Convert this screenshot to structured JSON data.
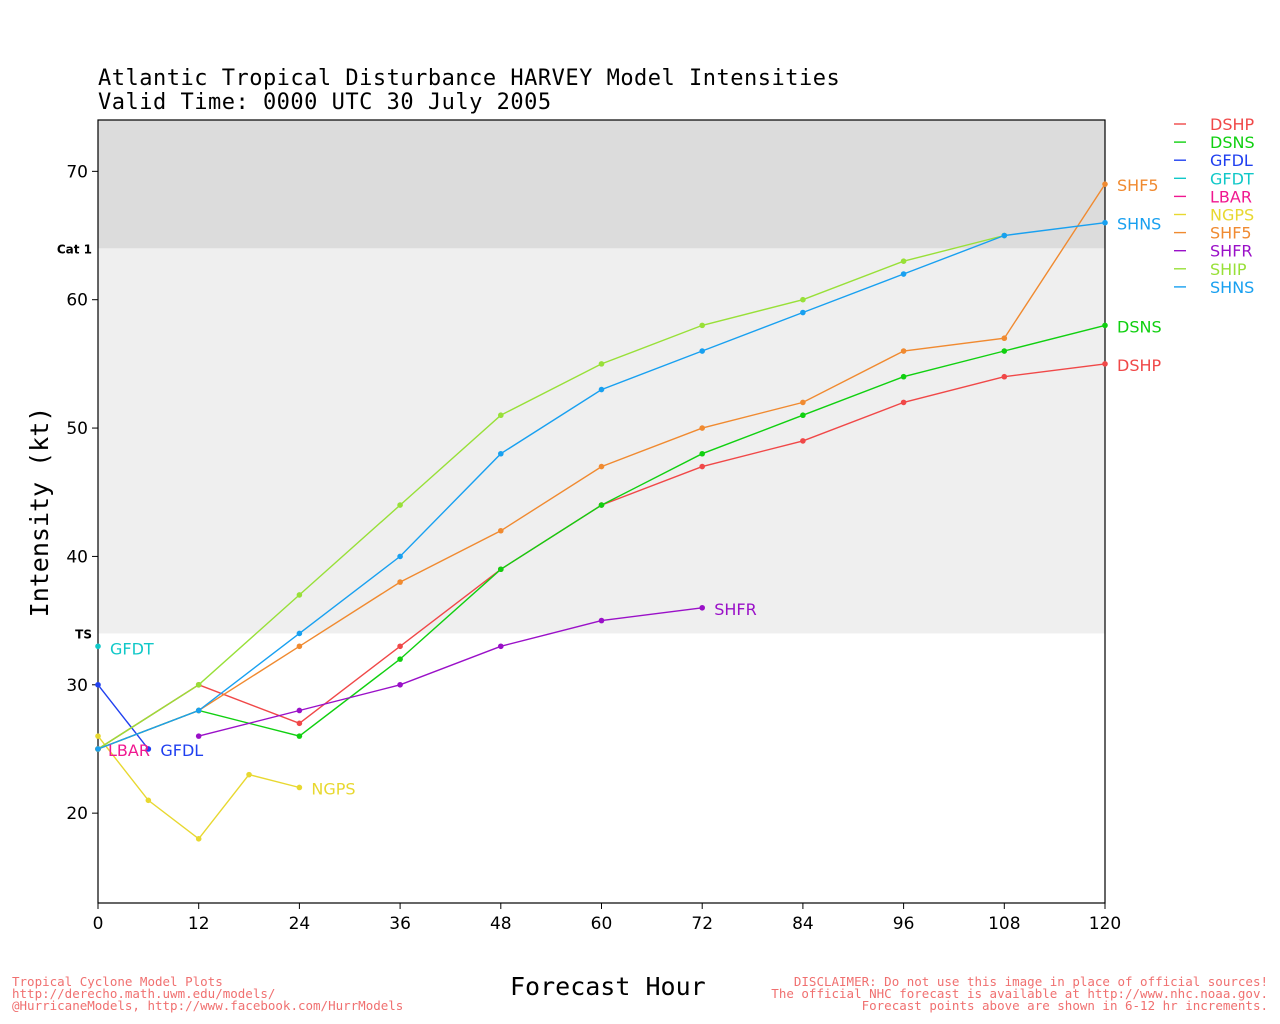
{
  "header": {
    "title_line1": "Atlantic Tropical Disturbance HARVEY Model Intensities",
    "title_line2": "Valid Time: 0000 UTC 30 July 2005"
  },
  "footer": {
    "left_lines": [
      "Tropical Cyclone Model Plots",
      "http://derecho.math.uwm.edu/models/",
      "@HurricaneModels, http://www.facebook.com/HurrModels"
    ],
    "right_lines": [
      "DISCLAIMER: Do not use this image in place of official sources!",
      "The official NHC forecast is available at http://www.nhc.noaa.gov.",
      "Forecast points above are shown in 6-12 hr increments."
    ]
  },
  "chart_data": {
    "type": "line",
    "xlabel": "Forecast Hour",
    "ylabel": "Intensity (kt)",
    "xlim": [
      0,
      120
    ],
    "ylim": [
      13,
      74
    ],
    "xticks": [
      0,
      12,
      24,
      36,
      48,
      60,
      72,
      84,
      96,
      108,
      120
    ],
    "yticks": [
      20,
      30,
      40,
      50,
      60,
      70
    ],
    "thresholds": [
      {
        "label": "TS",
        "value": 34,
        "band_color": "#efefef"
      },
      {
        "label": "Cat 1",
        "value": 64,
        "band_color": "#dcdcdc"
      }
    ],
    "legend_position": "right",
    "series": [
      {
        "name": "DSHP",
        "color": "#f04848",
        "points": [
          [
            0,
            25
          ],
          [
            12,
            30
          ],
          [
            24,
            27
          ],
          [
            36,
            33
          ],
          [
            48,
            39
          ],
          [
            60,
            44
          ],
          [
            72,
            47
          ],
          [
            84,
            49
          ],
          [
            96,
            52
          ],
          [
            108,
            54
          ],
          [
            120,
            55
          ]
        ]
      },
      {
        "name": "DSNS",
        "color": "#10d010",
        "points": [
          [
            0,
            25
          ],
          [
            12,
            28
          ],
          [
            24,
            26
          ],
          [
            36,
            32
          ],
          [
            48,
            39
          ],
          [
            60,
            44
          ],
          [
            72,
            48
          ],
          [
            84,
            51
          ],
          [
            96,
            54
          ],
          [
            108,
            56
          ],
          [
            120,
            58
          ]
        ]
      },
      {
        "name": "GFDL",
        "color": "#2040f0",
        "points": [
          [
            0,
            30
          ],
          [
            6,
            25
          ]
        ]
      },
      {
        "name": "GFDT",
        "color": "#10c8c8",
        "points": [
          [
            0,
            33
          ]
        ]
      },
      {
        "name": "LBAR",
        "color": "#f01890",
        "points": [
          [
            0,
            25
          ]
        ]
      },
      {
        "name": "NGPS",
        "color": "#e8d830",
        "points": [
          [
            0,
            26
          ],
          [
            6,
            21
          ],
          [
            12,
            18
          ],
          [
            18,
            23
          ],
          [
            24,
            22
          ]
        ]
      },
      {
        "name": "SHF5",
        "color": "#f08a30",
        "points": [
          [
            0,
            25
          ],
          [
            12,
            28
          ],
          [
            24,
            33
          ],
          [
            36,
            38
          ],
          [
            48,
            42
          ],
          [
            60,
            47
          ],
          [
            72,
            50
          ],
          [
            84,
            52
          ],
          [
            96,
            56
          ],
          [
            108,
            57
          ],
          [
            120,
            69
          ]
        ]
      },
      {
        "name": "SHFR",
        "color": "#9a10c8",
        "points": [
          [
            12,
            26
          ],
          [
            24,
            28
          ],
          [
            36,
            30
          ],
          [
            48,
            33
          ],
          [
            60,
            35
          ],
          [
            72,
            36
          ]
        ]
      },
      {
        "name": "SHIP",
        "color": "#98e038",
        "points": [
          [
            0,
            25
          ],
          [
            12,
            30
          ],
          [
            24,
            37
          ],
          [
            36,
            44
          ],
          [
            48,
            51
          ],
          [
            60,
            55
          ],
          [
            72,
            58
          ],
          [
            84,
            60
          ],
          [
            96,
            63
          ],
          [
            108,
            65
          ]
        ]
      },
      {
        "name": "SHNS",
        "color": "#18a0f0",
        "points": [
          [
            0,
            25
          ],
          [
            12,
            28
          ],
          [
            24,
            34
          ],
          [
            36,
            40
          ],
          [
            48,
            48
          ],
          [
            60,
            53
          ],
          [
            72,
            56
          ],
          [
            84,
            59
          ],
          [
            96,
            62
          ],
          [
            108,
            65
          ],
          [
            120,
            66
          ]
        ]
      }
    ],
    "end_labels": [
      {
        "series": "GFDT",
        "text": "GFDT"
      },
      {
        "series": "LBAR",
        "text": "LBAR"
      },
      {
        "series": "GFDL",
        "text": "GFDL"
      },
      {
        "series": "NGPS",
        "text": "NGPS"
      },
      {
        "series": "SHFR",
        "text": "SHFR"
      },
      {
        "series": "SHF5",
        "text": "SHF5"
      },
      {
        "series": "SHNS",
        "text": "SHNS"
      },
      {
        "series": "DSNS",
        "text": "DSNS"
      },
      {
        "series": "DSHP",
        "text": "DSHP"
      }
    ]
  }
}
